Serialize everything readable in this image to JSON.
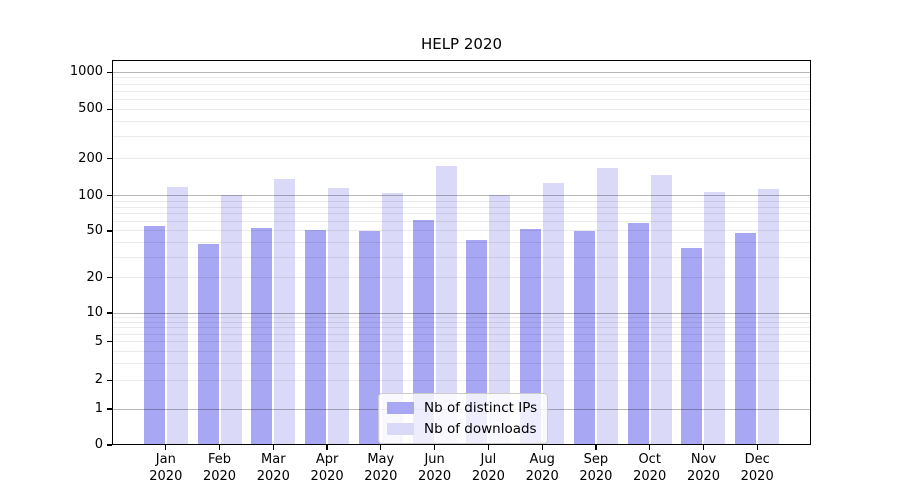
{
  "chart_data": {
    "type": "bar",
    "title": "HELP 2020",
    "categories": [
      "Jan 2020",
      "Feb 2020",
      "Mar 2020",
      "Apr 2020",
      "May 2020",
      "Jun 2020",
      "Jul 2020",
      "Aug 2020",
      "Sep 2020",
      "Oct 2020",
      "Nov 2020",
      "Dec 2020"
    ],
    "series": [
      {
        "name": "Nb of distinct IPs",
        "color": "#a7a7f3",
        "values": [
          55,
          39,
          53,
          51,
          50,
          62,
          42,
          52,
          50,
          59,
          36,
          48
        ]
      },
      {
        "name": "Nb of downloads",
        "color": "#dadaf8",
        "values": [
          118,
          102,
          137,
          115,
          105,
          174,
          101,
          126,
          169,
          147,
          108,
          113
        ]
      }
    ],
    "xlabel": "",
    "ylabel": "",
    "yscale": "log (symlog with 0 at baseline)",
    "y_ticks": [
      0,
      1,
      2,
      5,
      10,
      20,
      50,
      100,
      200,
      500,
      1000
    ],
    "ylim": [
      0,
      1260
    ],
    "grid": "horizontal major and minor gridlines",
    "legend_position": "lower center"
  },
  "colors": {
    "bar_distinct_ips": "#a7a7f3",
    "bar_downloads": "#dadaf8",
    "major_grid": "#b5b5b5",
    "minor_grid": "#ebebeb",
    "axis": "#000000",
    "legend_border": "#cccccc",
    "background": "#ffffff"
  }
}
